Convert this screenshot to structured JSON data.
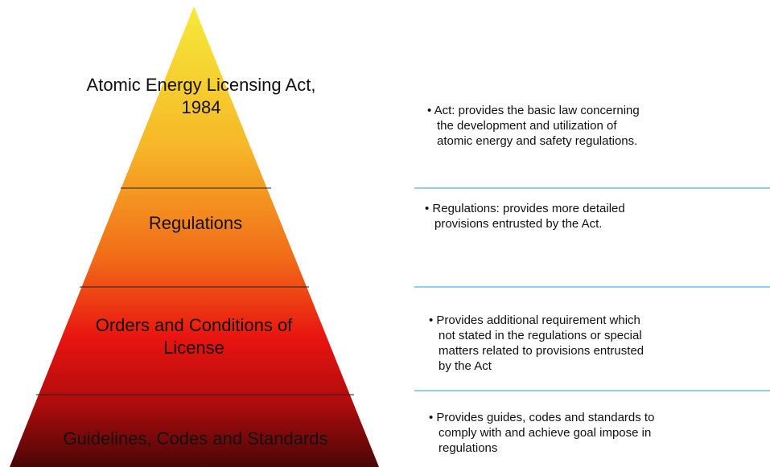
{
  "levels": [
    {
      "label": [
        "Atomic Energy Licensing Act,",
        "1984"
      ],
      "description": [
        "• Act: provides the basic law concerning",
        "the development and utilization of",
        "atomic energy and safety regulations."
      ]
    },
    {
      "label": [
        "Regulations"
      ],
      "description": [
        "• Regulations: provides more detailed",
        "provisions entrusted by the Act."
      ]
    },
    {
      "label": [
        "Orders and Conditions of",
        "License"
      ],
      "description": [
        "• Provides additional requirement which",
        "not stated in the regulations or special",
        "matters related to provisions entrusted",
        "by the Act"
      ]
    },
    {
      "label": [
        "Guidelines, Codes and Standards"
      ],
      "description": [
        "• Provides guides, codes and standards to",
        "comply with and achieve goal impose in",
        "regulations"
      ]
    }
  ]
}
